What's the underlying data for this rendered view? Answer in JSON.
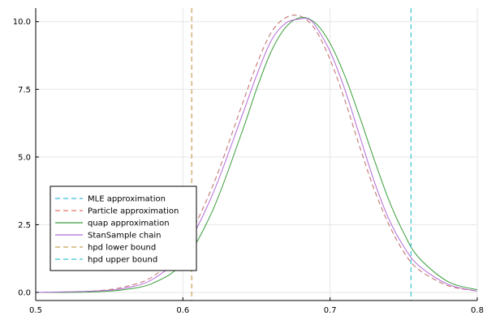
{
  "chart_data": {
    "type": "line",
    "title": "",
    "xlabel": "",
    "ylabel": "",
    "xlim": [
      0.5,
      0.8
    ],
    "ylim": [
      -0.3,
      10.5
    ],
    "xticks": [
      0.5,
      0.6,
      0.7,
      0.8
    ],
    "xtick_labels": [
      "0.5",
      "0.6",
      "0.7",
      "0.8"
    ],
    "yticks": [
      0,
      2.5,
      5,
      7.5,
      10
    ],
    "ytick_labels": [
      "0.0",
      "2.5",
      "5.0",
      "7.5",
      "10.0"
    ],
    "grid": true,
    "legend_position": "bottom-left",
    "series": [
      {
        "name": "MLE approximation",
        "color": "#3fb6e8",
        "style": "dashed",
        "x": [
          0.5,
          0.52,
          0.54,
          0.56,
          0.58,
          0.6,
          0.62,
          0.64,
          0.65,
          0.66,
          0.67,
          0.68,
          0.69,
          0.7,
          0.71,
          0.72,
          0.73,
          0.74,
          0.75,
          0.76,
          0.78,
          0.8
        ],
        "y": [
          0.0,
          0.01,
          0.05,
          0.2,
          0.6,
          1.7,
          3.9,
          6.9,
          8.4,
          9.6,
          10.15,
          10.2,
          9.7,
          8.6,
          7.1,
          5.4,
          3.8,
          2.5,
          1.5,
          0.85,
          0.25,
          0.05
        ]
      },
      {
        "name": "Particle approximation",
        "color": "#e0736a",
        "style": "dashed",
        "x": [
          0.5,
          0.52,
          0.54,
          0.56,
          0.58,
          0.6,
          0.62,
          0.64,
          0.65,
          0.66,
          0.67,
          0.68,
          0.69,
          0.7,
          0.71,
          0.72,
          0.73,
          0.74,
          0.75,
          0.76,
          0.78,
          0.8
        ],
        "y": [
          0.0,
          0.01,
          0.05,
          0.2,
          0.6,
          1.7,
          3.9,
          6.9,
          8.4,
          9.6,
          10.15,
          10.2,
          9.7,
          8.6,
          7.1,
          5.4,
          3.8,
          2.5,
          1.5,
          0.85,
          0.25,
          0.05
        ]
      },
      {
        "name": "quap approximation",
        "color": "#3a9e3a",
        "style": "solid",
        "x": [
          0.5,
          0.52,
          0.54,
          0.56,
          0.58,
          0.6,
          0.62,
          0.64,
          0.65,
          0.66,
          0.67,
          0.68,
          0.69,
          0.7,
          0.71,
          0.72,
          0.73,
          0.74,
          0.75,
          0.76,
          0.78,
          0.8
        ],
        "y": [
          0.0,
          0.0,
          0.02,
          0.1,
          0.35,
          1.1,
          3.0,
          5.9,
          7.5,
          8.9,
          9.8,
          10.15,
          9.95,
          9.2,
          8.0,
          6.5,
          4.9,
          3.4,
          2.2,
          1.3,
          0.4,
          0.1
        ]
      },
      {
        "name": "StanSample chain",
        "color": "#b36ad8",
        "style": "solid",
        "x": [
          0.5,
          0.52,
          0.54,
          0.56,
          0.58,
          0.6,
          0.62,
          0.64,
          0.65,
          0.66,
          0.67,
          0.68,
          0.685,
          0.69,
          0.7,
          0.71,
          0.72,
          0.73,
          0.74,
          0.75,
          0.76,
          0.78,
          0.8
        ],
        "y": [
          0.0,
          0.02,
          0.05,
          0.15,
          0.5,
          1.5,
          3.6,
          6.5,
          8.0,
          9.3,
          9.95,
          10.1,
          10.1,
          9.85,
          8.9,
          7.5,
          5.8,
          4.1,
          2.7,
          1.7,
          1.0,
          0.3,
          0.05
        ]
      },
      {
        "name": "hpd lower bound",
        "color": "#c8a158",
        "style": "dashed",
        "vline": 0.606
      },
      {
        "name": "hpd upper bound",
        "color": "#3fc4d0",
        "style": "dashed",
        "vline": 0.755
      }
    ]
  }
}
